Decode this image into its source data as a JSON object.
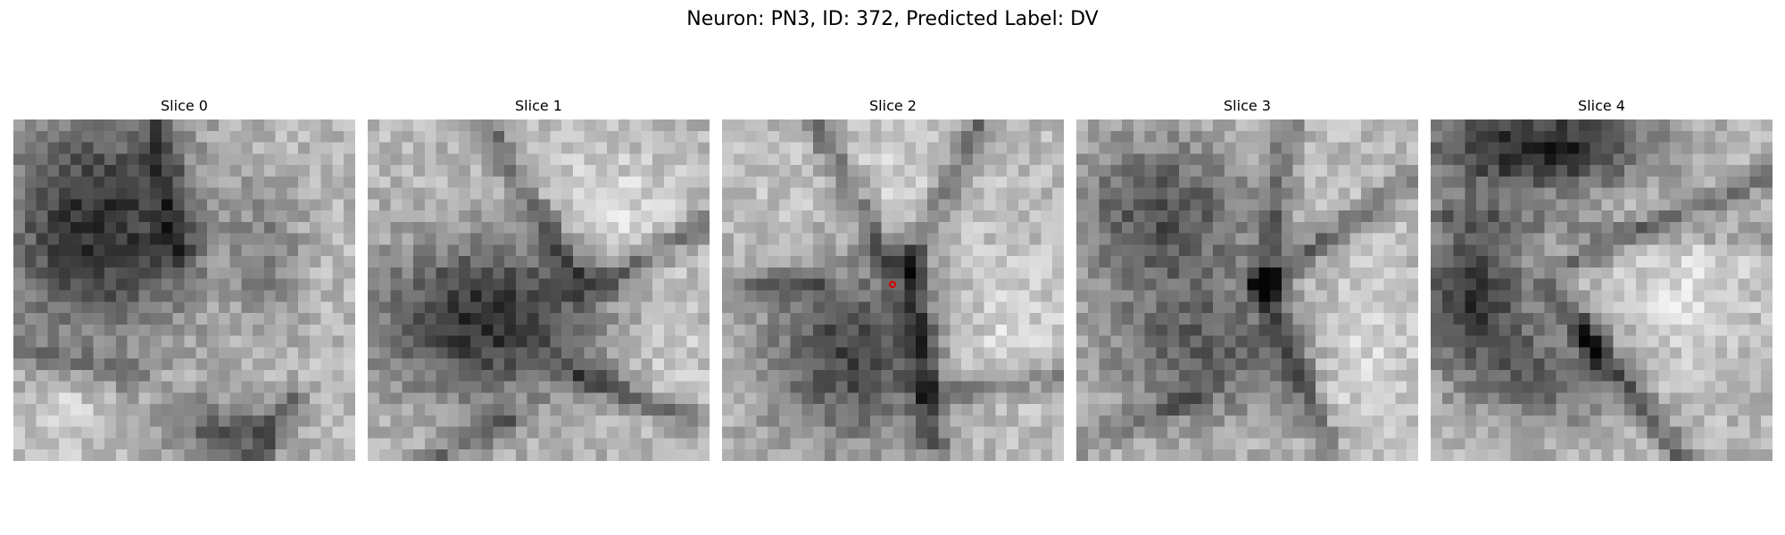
{
  "figure": {
    "title": "Neuron: PN3, ID: 372, Predicted Label: DV"
  },
  "panels": [
    {
      "title": "Slice 0"
    },
    {
      "title": "Slice 1"
    },
    {
      "title": "Slice 2"
    },
    {
      "title": "Slice 3"
    },
    {
      "title": "Slice 4"
    }
  ],
  "marker": {
    "color": "#e00000",
    "slice_index": 2,
    "shape": "circle"
  }
}
